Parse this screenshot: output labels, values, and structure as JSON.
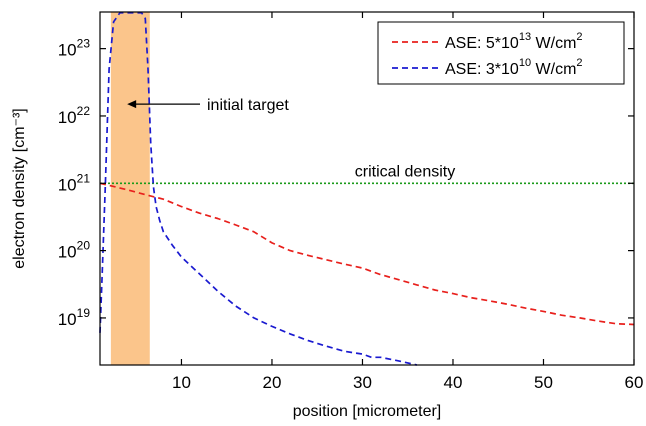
{
  "chart_data": {
    "type": "line",
    "xlabel": "position [micrometer]",
    "ylabel": "electron density [cm⁻³]",
    "xlim": [
      1,
      60
    ],
    "ylim": [
      2e+18,
      3.5e+23
    ],
    "yscale": "log",
    "x_ticks": [
      10,
      20,
      30,
      40,
      50,
      60
    ],
    "y_ticks": [
      {
        "value": 1e+19,
        "base": "10",
        "exp": "19"
      },
      {
        "value": 1e+20,
        "base": "10",
        "exp": "20"
      },
      {
        "value": 1e+21,
        "base": "10",
        "exp": "21"
      },
      {
        "value": 1e+22,
        "base": "10",
        "exp": "22"
      },
      {
        "value": 1e+23,
        "base": "10",
        "exp": "23"
      }
    ],
    "target_band": {
      "x_start": 2.2,
      "x_end": 6.5,
      "color": "#fbc58b"
    },
    "critical_density": {
      "value": 1e+21,
      "label": "critical density",
      "color": "#1a9a1a"
    },
    "annotations": [
      {
        "text": "initial target",
        "arrow_to_x": 4.0,
        "arrow_to_y": 1.5e+22
      }
    ],
    "legend_position": "top-right",
    "series": [
      {
        "name": "ASE: 5*10",
        "name_exp": "13",
        "name_unit": " W/cm",
        "name_unit_exp": "2",
        "color": "#e8201c",
        "x": [
          1.0,
          2,
          4,
          6,
          8,
          10,
          12,
          14,
          16,
          18,
          20,
          22,
          24,
          26,
          28,
          30,
          32,
          34,
          36,
          38,
          40,
          42,
          44,
          46,
          48,
          50,
          52,
          54,
          56,
          58,
          60
        ],
        "y": [
          1e+21,
          9.3e+20,
          8e+20,
          6.8e+20,
          5.8e+20,
          4.5e+20,
          3.6e+20,
          3e+20,
          2.4e+20,
          1.9e+20,
          1.3e+20,
          1e+20,
          8.5e+19,
          7.3e+19,
          6.3e+19,
          5.5e+19,
          4.4e+19,
          3.7e+19,
          3.1e+19,
          2.6e+19,
          2.3e+19,
          2e+19,
          1.8e+19,
          1.6e+19,
          1.4e+19,
          1.25e+19,
          1.1e+19,
          1e+19,
          9e+18,
          8.2e+18,
          8e+18
        ]
      },
      {
        "name": "ASE: 3*10",
        "name_exp": "10",
        "name_unit": " W/cm",
        "name_unit_exp": "2",
        "color": "#1a1ad0",
        "x": [
          1.0,
          1.25,
          1.6,
          2.0,
          2.5,
          3.2,
          4,
          5,
          5.6,
          6.0,
          6.3,
          6.6,
          6.9,
          7.2,
          7.6,
          8,
          9,
          10,
          12,
          14,
          16,
          18,
          20,
          22,
          24,
          26,
          28,
          30,
          31,
          32,
          34,
          36
        ],
        "y": [
          6e+18,
          5e+19,
          1e+21,
          5e+22,
          2.5e+23,
          3.4e+23,
          3.4e+23,
          3.4e+23,
          3.4e+23,
          2.8e+23,
          5e+22,
          4e+21,
          9e+20,
          4.5e+20,
          2.8e+20,
          1.9e+20,
          1.2e+20,
          8e+19,
          4.5e+19,
          2.5e+19,
          1.5e+19,
          1e+19,
          7.5e+18,
          5.8e+18,
          4.6e+18,
          3.8e+18,
          3.2e+18,
          2.9e+18,
          2.6e+18,
          2.6e+18,
          2.3e+18,
          2e+18
        ]
      }
    ]
  }
}
